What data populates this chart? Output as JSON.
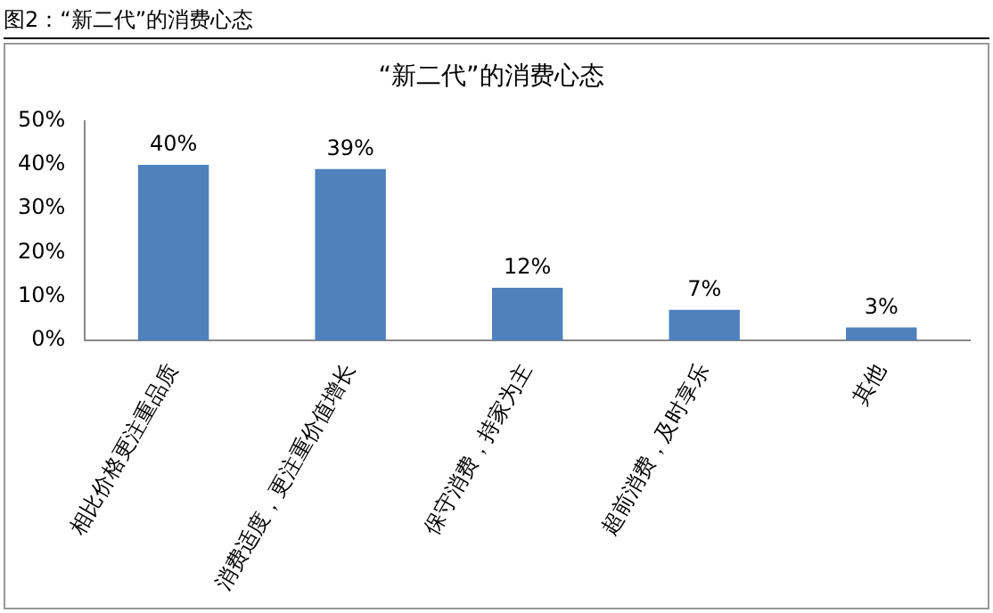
{
  "chart_data": {
    "type": "bar",
    "title": "“新二代”的消费心态",
    "annotations": [
      "图2：“新二代”的消费心态"
    ],
    "categories": [
      "相比价格更注重品质",
      "消费适度，更注重价值增长",
      "保守消费，持家为主",
      "超前消费，及时享乐",
      "其他"
    ],
    "values": [
      40,
      39,
      12,
      7,
      3
    ],
    "value_labels": [
      "40%",
      "39%",
      "12%",
      "7%",
      "3%"
    ],
    "color": "#4f81bd",
    "ylim": [
      0,
      50
    ],
    "yticks": [
      {
        "value": 0,
        "label": "0%"
      },
      {
        "value": 10,
        "label": "10%"
      },
      {
        "value": 20,
        "label": "20%"
      },
      {
        "value": 30,
        "label": "30%"
      },
      {
        "value": 40,
        "label": "40%"
      },
      {
        "value": 50,
        "label": "50%"
      }
    ],
    "grid": false,
    "legend": false
  }
}
